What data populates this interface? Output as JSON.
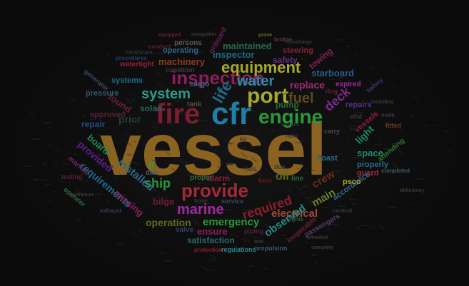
{
  "word_cloud": {
    "words": [
      {
        "text": "vessel",
        "color": "#8a6320"
      },
      {
        "text": "cfr",
        "color": "#1f7fa6"
      },
      {
        "text": "fire",
        "color": "#7a1e30"
      },
      {
        "text": "engine",
        "color": "#2a9a3a"
      },
      {
        "text": "port",
        "color": "#a8a82a"
      },
      {
        "text": "provide",
        "color": "#a02a3a"
      },
      {
        "text": "inspection",
        "color": "#8a1e5a"
      },
      {
        "text": "system",
        "color": "#2a9a8a"
      },
      {
        "text": "equipment",
        "color": "#a8a82a"
      },
      {
        "text": "water",
        "color": "#2a8aa6"
      },
      {
        "text": "marine",
        "color": "#a02aa0"
      },
      {
        "text": "required",
        "color": "#8a1e2a"
      },
      {
        "text": "life",
        "color": "#1e6a8a"
      },
      {
        "text": "fuel",
        "color": "#5a4a1e"
      },
      {
        "text": "deck",
        "color": "#7a2a8a"
      },
      {
        "text": "ship",
        "color": "#2a9a3a"
      },
      {
        "text": "emergency",
        "color": "#2a9a3a"
      },
      {
        "text": "electrical",
        "color": "#a04a3a"
      },
      {
        "text": "observed",
        "color": "#2a8a8a"
      },
      {
        "text": "replace",
        "color": "#a02a7a"
      },
      {
        "text": "crew",
        "color": "#6a2a1e"
      },
      {
        "text": "main",
        "color": "#6a8a1e"
      },
      {
        "text": "installed",
        "color": "#2a6a8a"
      },
      {
        "text": "provided",
        "color": "#5a1e8a"
      },
      {
        "text": "board",
        "color": "#1e8a5a"
      },
      {
        "text": "found",
        "color": "#6a1e3a"
      },
      {
        "text": "repair",
        "color": "#1e4a8a"
      },
      {
        "text": "requirements",
        "color": "#1e6a8a"
      },
      {
        "text": "missing",
        "color": "#8a1e5a"
      },
      {
        "text": "operation",
        "color": "#5a6a1e"
      },
      {
        "text": "ensure",
        "color": "#8a1e5a"
      },
      {
        "text": "maintained",
        "color": "#2a6a4a"
      },
      {
        "text": "inspector",
        "color": "#1e6a8a"
      },
      {
        "text": "machinery",
        "color": "#8a3a1e"
      },
      {
        "text": "operating",
        "color": "#2a6a8a"
      },
      {
        "text": "safety",
        "color": "#6a2a8a"
      },
      {
        "text": "steering",
        "color": "#8a1e3a"
      },
      {
        "text": "starboard",
        "color": "#2a5a8a"
      },
      {
        "text": "towing",
        "color": "#8a1e5a"
      },
      {
        "text": "light",
        "color": "#1e8a6a"
      },
      {
        "text": "space",
        "color": "#1e8a6a"
      },
      {
        "text": "repairs",
        "color": "#5a2a8a"
      },
      {
        "text": "properly",
        "color": "#2a6a8a"
      },
      {
        "text": "guard",
        "color": "#a02a3a"
      },
      {
        "text": "accordance",
        "color": "#2a6a8a"
      },
      {
        "text": "psco",
        "color": "#a8a82a"
      },
      {
        "text": "oil",
        "color": "#5a6a1e"
      },
      {
        "text": "alarm",
        "color": "#8a1e3a"
      },
      {
        "text": "proper",
        "color": "#3a6a3a"
      },
      {
        "text": "bilge",
        "color": "#6a1e3a"
      },
      {
        "text": "satisfaction",
        "color": "#2a6a6a"
      },
      {
        "text": "valve",
        "color": "#3a3a6a"
      },
      {
        "text": "pump",
        "color": "#2a6a3a"
      },
      {
        "text": "solas",
        "color": "#1e6a6a"
      },
      {
        "text": "approved",
        "color": "#5a1e3a"
      },
      {
        "text": "cargo",
        "color": "#3a6a8a"
      },
      {
        "text": "tank",
        "color": "#5a4a3a"
      },
      {
        "text": "pressure",
        "color": "#2a5a6a"
      },
      {
        "text": "systems",
        "color": "#1e6a8a"
      },
      {
        "text": "watertight",
        "color": "#a01e3a"
      },
      {
        "text": "persons",
        "color": "#5a5a5a"
      },
      {
        "text": "onboard",
        "color": "#6a1e5a"
      },
      {
        "text": "coast",
        "color": "#2a6a8a"
      },
      {
        "text": "vessels",
        "color": "#8a1e3a"
      },
      {
        "text": "attending",
        "color": "#2a7a2a"
      },
      {
        "text": "passengers",
        "color": "#5a3a6a"
      },
      {
        "text": "inoperable",
        "color": "#6a1e3a"
      },
      {
        "text": "expired",
        "color": "#a02aa0"
      },
      {
        "text": "prior",
        "color": "#2a3a3a"
      },
      {
        "text": "ii",
        "color": "#2a9a3a"
      },
      {
        "text": "date",
        "color": "#4a5a6a"
      },
      {
        "text": "condition",
        "color": "#3a3a3a"
      },
      {
        "text": "marked",
        "color": "#6a2a6a"
      },
      {
        "text": "testing",
        "color": "#5a1e3a"
      },
      {
        "text": "operator",
        "color": "#2a6a3a"
      },
      {
        "text": "exhaust",
        "color": "#3a3a5a"
      },
      {
        "text": "hose",
        "color": "#3a3a3a"
      },
      {
        "text": "regulations",
        "color": "#2a8a8a"
      },
      {
        "text": "protection",
        "color": "#8a1e1e"
      },
      {
        "text": "propulsion",
        "color": "#3a5a6a"
      },
      {
        "text": "lights",
        "color": "#2a5a3a"
      },
      {
        "text": "service",
        "color": "#2a4a6a"
      },
      {
        "text": "fitted",
        "color": "#6a3a1e"
      },
      {
        "text": "completed",
        "color": "#3a5a6a"
      },
      {
        "text": "control",
        "color": "#3a3a3a"
      },
      {
        "text": "piping",
        "color": "#5a1e3a"
      },
      {
        "text": "generator",
        "color": "#3a4a6a"
      },
      {
        "text": "procedures",
        "color": "#2a3a6a"
      },
      {
        "text": "certificate",
        "color": "#2a3a3a"
      },
      {
        "text": "conduct",
        "color": "#5a1e3a"
      },
      {
        "text": "equipped",
        "color": "#6a1e3a"
      },
      {
        "text": "navigation",
        "color": "#3a3a3a"
      },
      {
        "text": "prove",
        "color": "#6a6a1e"
      },
      {
        "text": "bridge",
        "color": "#5a3a3a"
      },
      {
        "text": "discharge",
        "color": "#3a3a3a"
      },
      {
        "text": "ring",
        "color": "#6a1e3a"
      },
      {
        "text": "code",
        "color": "#3a3a3a"
      },
      {
        "text": "battery",
        "color": "#3a3a6a"
      },
      {
        "text": "including",
        "color": "#3a3a3a"
      },
      {
        "text": "carry",
        "color": "#4a4a4a"
      },
      {
        "text": "current",
        "color": "#3a3a3a"
      },
      {
        "text": "fixed",
        "color": "#6a1e1e"
      },
      {
        "text": "due",
        "color": "#3a3a3a"
      },
      {
        "text": "hull",
        "color": "#3a3a3a"
      },
      {
        "text": "kit",
        "color": "#3a3a3a"
      },
      {
        "text": "sea",
        "color": "#3a3a3a"
      },
      {
        "text": "test",
        "color": "#3a3a3a"
      },
      {
        "text": "radio",
        "color": "#3a3a3a"
      },
      {
        "text": "intended",
        "color": "#3a3a3a"
      },
      {
        "text": "company",
        "color": "#3a3a3a"
      },
      {
        "text": "stbd",
        "color": "#3a3a3a"
      },
      {
        "text": "line",
        "color": "#2a6a3a"
      },
      {
        "text": "appliances",
        "color": "#3a3a3a"
      },
      {
        "text": "deficiency",
        "color": "#3a3a3a"
      }
    ]
  }
}
